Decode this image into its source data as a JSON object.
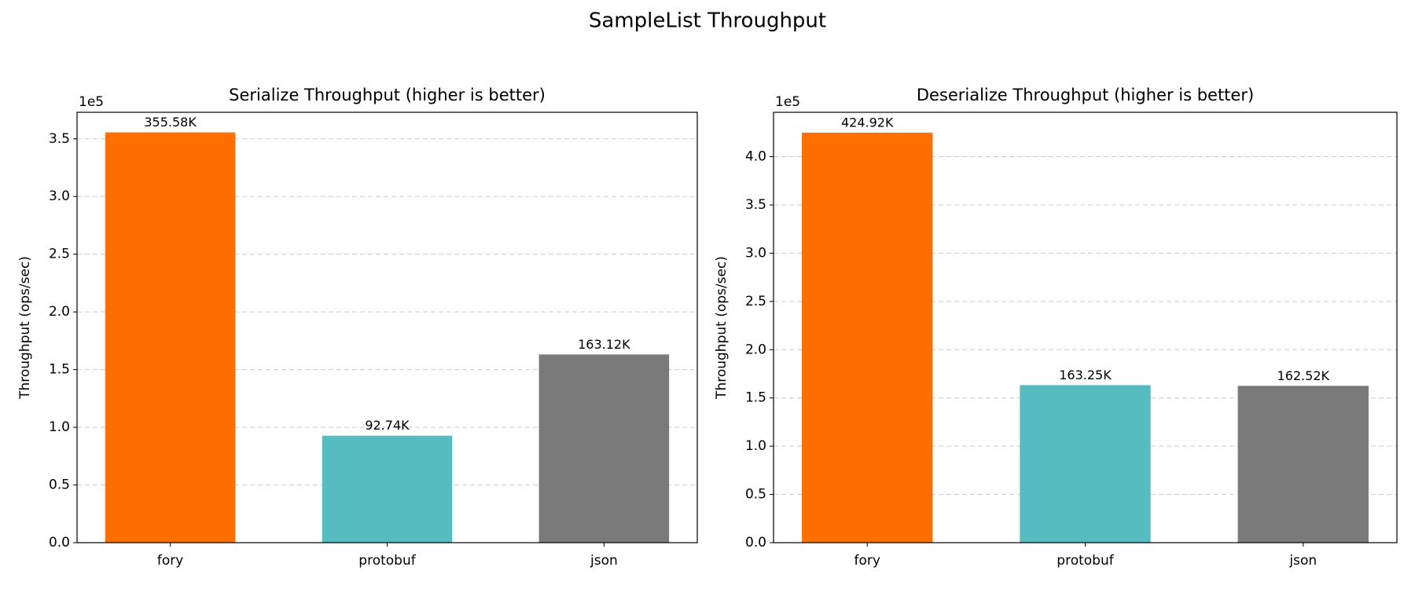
{
  "title": "SampleList Throughput",
  "chart_data": [
    {
      "type": "bar",
      "title": "Serialize Throughput (higher is better)",
      "ylabel": "Throughput (ops/sec)",
      "offset_text": "1e5",
      "categories": [
        "fory",
        "protobuf",
        "json"
      ],
      "values": [
        355580,
        92740,
        163120
      ],
      "value_labels": [
        "355.58K",
        "92.74K",
        "163.12K"
      ],
      "colors": [
        "#ff6f00",
        "#56bcc2",
        "#7a7a7a"
      ],
      "ylim": [
        0,
        373000
      ],
      "yticks": [
        {
          "value": 0,
          "label": "0.0"
        },
        {
          "value": 50000,
          "label": "0.5"
        },
        {
          "value": 100000,
          "label": "1.0"
        },
        {
          "value": 150000,
          "label": "1.5"
        },
        {
          "value": 200000,
          "label": "2.0"
        },
        {
          "value": 250000,
          "label": "2.5"
        },
        {
          "value": 300000,
          "label": "3.0"
        },
        {
          "value": 350000,
          "label": "3.5"
        }
      ],
      "grid": true
    },
    {
      "type": "bar",
      "title": "Deserialize Throughput (higher is better)",
      "ylabel": "Throughput (ops/sec)",
      "offset_text": "1e5",
      "categories": [
        "fory",
        "protobuf",
        "json"
      ],
      "values": [
        424920,
        163250,
        162520
      ],
      "value_labels": [
        "424.92K",
        "163.25K",
        "162.52K"
      ],
      "colors": [
        "#ff6f00",
        "#56bcc2",
        "#7a7a7a"
      ],
      "ylim": [
        0,
        446000
      ],
      "yticks": [
        {
          "value": 0,
          "label": "0.0"
        },
        {
          "value": 50000,
          "label": "0.5"
        },
        {
          "value": 100000,
          "label": "1.0"
        },
        {
          "value": 150000,
          "label": "1.5"
        },
        {
          "value": 200000,
          "label": "2.0"
        },
        {
          "value": 250000,
          "label": "2.5"
        },
        {
          "value": 300000,
          "label": "3.0"
        },
        {
          "value": 350000,
          "label": "3.5"
        },
        {
          "value": 400000,
          "label": "4.0"
        }
      ],
      "grid": true
    }
  ]
}
